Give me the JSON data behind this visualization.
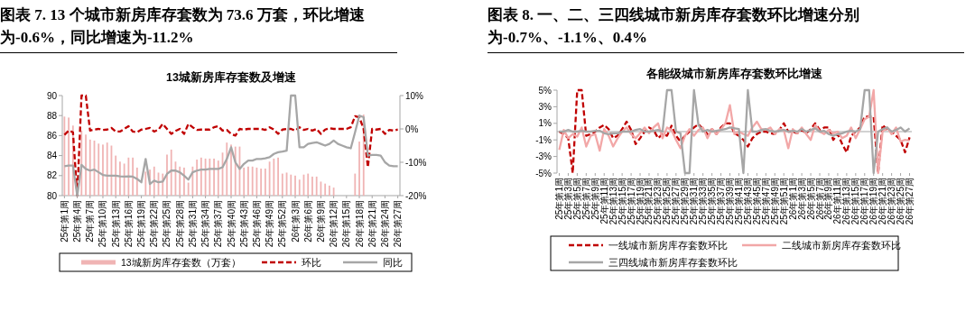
{
  "chart_data": [
    {
      "type": "bar",
      "title": "图表 7. 13 个城市新房库存套数为 73.6 万套，环比增速为-0.6%，同比增速为-11.2%",
      "subtitle": "13城新房库存套数及增速",
      "categories": [
        "25年第1周",
        null,
        null,
        "25年第4周",
        null,
        null,
        "25年第7周",
        null,
        null,
        "25年第10周",
        null,
        null,
        "25年第13周",
        null,
        null,
        "25年第16周",
        null,
        null,
        "25年第19周",
        null,
        null,
        "25年第22周",
        null,
        null,
        "25年第25周",
        null,
        null,
        "25年第28周",
        null,
        null,
        "25年第31周",
        null,
        null,
        "25年第34周",
        null,
        null,
        "25年第37周",
        null,
        null,
        "25年第40周",
        null,
        null,
        "25年第43周",
        null,
        null,
        "25年第46周",
        null,
        null,
        "25年第49周",
        null,
        null,
        "25年第52周",
        null,
        null,
        "26年第3周",
        null,
        null,
        "26年第6周",
        null,
        null,
        "26年第9周",
        null,
        null,
        "26年第12周",
        null,
        null,
        "26年第15周",
        null,
        null,
        "26年第18周",
        null,
        null,
        "26年第21周",
        null,
        null,
        "26年第24周",
        null,
        null,
        "26年第27周"
      ],
      "series": [
        {
          "name": "13城新房库存套数（万套）",
          "color": "#f0b4b4",
          "values": [
            87.9,
            87.8,
            87.0,
            null,
            86.5,
            86.1,
            85.6,
            85.5,
            85.2,
            85.1,
            85.3,
            85.0,
            84.0,
            83.4,
            83.2,
            83.8,
            83.8,
            82.8,
            null,
            82.4,
            82.6,
            82.9,
            82.3,
            82.2,
            84.1,
            84.6,
            83.4,
            82.9,
            82.8,
            81.3,
            82.9,
            83.6,
            83.8,
            83.7,
            83.7,
            83.7,
            83.5,
            84.3,
            85.3,
            85.1,
            84.9,
            84.9,
            82.8,
            82.9,
            82.9,
            82.8,
            82.7,
            82.7,
            83.4,
            83.7,
            83.8,
            82.2,
            82.3,
            82.1,
            82.0,
            81.6,
            82.1,
            82.2,
            81.9,
            81.9,
            81.4,
            81.2,
            81.0,
            80.8,
            null,
            null,
            null,
            null,
            82.2,
            85.4,
            88.1,
            null,
            null,
            null,
            null,
            null,
            null,
            null,
            null
          ]
        },
        {
          "name": "环比",
          "type": "line",
          "axis": "y2",
          "line_style": "dashed",
          "color": "#c00000",
          "values": [
            -1.8,
            -0.5,
            -1,
            -20,
            10,
            10,
            -0.5,
            -0.2,
            0,
            -0.3,
            -0.2,
            0.3,
            -0.8,
            -0.8,
            0,
            0.8,
            -0.8,
            -1,
            -0.2,
            0,
            0.3,
            -0.8,
            -0.2,
            1.5,
            0,
            -1.5,
            -0.6,
            0,
            -1.5,
            1.5,
            0.5,
            -0.3,
            -0.2,
            -0.2,
            -0.2,
            0.5,
            0.8,
            -0.5,
            -0.3,
            -1.5,
            -2,
            0,
            -0.2,
            0,
            0,
            0,
            0,
            -0.3,
            0.5,
            -0.2,
            -1.5,
            -0.2,
            0,
            0,
            -0.5,
            0.5,
            -0.3,
            0,
            -0.5,
            0,
            -1.5,
            -0.2,
            0.2,
            0,
            0,
            0,
            0,
            0.5,
            3.8,
            3.5,
            0,
            -11.5,
            0,
            -0.2,
            0,
            -1.5,
            -0.3,
            -0.5,
            -0.2
          ]
        },
        {
          "name": "同比",
          "type": "line",
          "axis": "y2",
          "line_style": "solid",
          "color": "#a6a6a6",
          "values": [
            -11.2,
            -11,
            -11,
            -20,
            -10.8,
            -12,
            -12.5,
            -12.2,
            -13,
            -13.8,
            -14,
            -14,
            -14,
            -14.2,
            -14.3,
            -14.2,
            -14.3,
            -15,
            -16,
            -9,
            -16.5,
            -15.5,
            -16,
            -15.8,
            -13.5,
            -12.5,
            -12.5,
            -13,
            -14,
            -15.2,
            -13,
            -12.5,
            -12.2,
            -12.2,
            -12,
            -12,
            -12,
            -11.5,
            -9,
            -5.5,
            -10,
            -12,
            -10.5,
            -9.5,
            -9.5,
            -9,
            -9,
            -8.8,
            -8.5,
            -7.5,
            -7,
            -6.8,
            -6.5,
            10,
            10,
            -5.5,
            -5.5,
            -4.5,
            -4.2,
            -4,
            -4.5,
            -5,
            -4.5,
            -3.5,
            -4.5,
            -5,
            -5.5,
            -5.8,
            -1,
            4,
            3.5,
            -8,
            -7.8,
            -7.8,
            -8,
            -10,
            -11,
            -11.2,
            -11.2
          ]
        }
      ],
      "ylim": [
        80,
        90
      ],
      "yticks": [
        80,
        82,
        84,
        86,
        88,
        90
      ],
      "y2lim": [
        -20,
        10
      ],
      "y2ticks": [
        {
          "value": -20,
          "label": "-20%"
        },
        {
          "value": -10,
          "label": "-10%"
        },
        {
          "value": 0,
          "label": "0%"
        },
        {
          "value": 10,
          "label": "10%"
        }
      ],
      "legend": "bottom"
    },
    {
      "type": "line",
      "title": "图表 8. 一、二、三四线城市新房库存套数环比增速分别为-0.7%、-1.1%、0.4%",
      "subtitle": "各能级城市新房库存套数环比增速",
      "categories": [
        "25年第1周",
        null,
        "25年第3周",
        null,
        "25年第5周",
        null,
        "25年第7周",
        null,
        "25年第9周",
        null,
        "25年第11周",
        null,
        "25年第13周",
        null,
        "25年第15周",
        null,
        "25年第17周",
        null,
        "25年第19周",
        null,
        "25年第21周",
        null,
        "25年第23周",
        null,
        "25年第25周",
        null,
        "25年第27周",
        null,
        "25年第29周",
        null,
        "25年第31周",
        null,
        "25年第33周",
        null,
        "25年第35周",
        null,
        "25年第37周",
        null,
        "25年第39周",
        null,
        "25年第41周",
        null,
        "25年第43周",
        null,
        "25年第45周",
        null,
        "25年第47周",
        null,
        "25年第49周",
        null,
        "25年第51周",
        null,
        "26年第1周",
        null,
        "26年第3周",
        null,
        "26年第5周",
        null,
        "26年第7周",
        null,
        "26年第9周",
        null,
        "26年第11周",
        null,
        "26年第13周",
        null,
        "26年第15周",
        null,
        "26年第17周",
        null,
        "26年第19周",
        null,
        "26年第21周",
        null,
        "26年第23周",
        null,
        "26年第25周",
        null,
        "26年第27周"
      ],
      "series": [
        {
          "name": "一线城市新房库存套数环比",
          "line_style": "dashed",
          "color": "#c00000",
          "values": [
            0,
            -0.3,
            -0.8,
            -5,
            5,
            5,
            -0.5,
            -0.3,
            0,
            0.5,
            0.8,
            0.3,
            -0.8,
            -0.5,
            0.3,
            1.2,
            0.2,
            -1.5,
            -0.8,
            0,
            0.5,
            0.2,
            -0.8,
            -0.3,
            -0.5,
            0.7,
            -0.5,
            -1.2,
            -0.5,
            0,
            0.5,
            0.9,
            0.3,
            -0.3,
            0.3,
            -0.3,
            0.5,
            1.0,
            1.0,
            -0.2,
            -0.5,
            -1.0,
            -1.8,
            -0.8,
            -0.3,
            0,
            0,
            -0.2,
            -0.3,
            0.2,
            1.0,
            0,
            0,
            -0.2,
            0.2,
            -0.2,
            0.3,
            1.0,
            0.2,
            0.5,
            0.5,
            -1.0,
            -0.3,
            -1.5,
            -2.5,
            -0.5,
            0,
            0.5,
            1.8,
            1.8,
            1.8,
            -5,
            0.8,
            0.2,
            0,
            -0.5,
            -1,
            -2.5,
            -0.7
          ]
        },
        {
          "name": "二线城市新房库存套数环比",
          "line_style": "solid",
          "color": "#f2a7a7",
          "values": [
            -2.2,
            0.2,
            -0.8,
            -0.3,
            -0.6,
            0.5,
            -1.8,
            -0.5,
            -0.3,
            -2.3,
            0.3,
            -0.5,
            -1.8,
            -0.8,
            0,
            0.5,
            -0.3,
            -0.8,
            -0.2,
            0.5,
            -0.2,
            0.5,
            1.0,
            -0.8,
            0.5,
            0.2,
            -1.0,
            -2.0,
            -0.5,
            0.3,
            -0.5,
            0.2,
            0.5,
            -0.8,
            0.3,
            -0.3,
            0.3,
            1.0,
            3.2,
            -0.3,
            0,
            -0.3,
            -0.5,
            0.5,
            1.2,
            0.3,
            0.2,
            0.5,
            -0.3,
            0.3,
            0.2,
            -2.0,
            0.3,
            -0.2,
            0.5,
            -0.3,
            -1.0,
            0.8,
            0,
            -0.3,
            0.2,
            -0.2,
            0,
            -0.8,
            -0.5,
            0.5,
            -0.8,
            0.3,
            1.5,
            1.8,
            5,
            -5,
            0,
            0.5,
            -0.3,
            0.5,
            -1.2,
            -1.0,
            -1.1
          ]
        },
        {
          "name": "三四线城市新房库存套数环比",
          "line_style": "solid",
          "color": "#a6a6a6",
          "values": [
            0,
            0,
            0.2,
            0,
            0,
            0.1,
            0,
            0,
            0.1,
            0.1,
            -0.2,
            -0.3,
            -0.2,
            -0.2,
            0,
            0,
            0,
            0.2,
            0.3,
            0,
            0,
            0.1,
            0.2,
            0,
            5,
            5,
            0,
            -0.2,
            -5,
            -5,
            5,
            0.8,
            0,
            0.2,
            0,
            0.1,
            0.2,
            0.3,
            0.5,
            0.4,
            0.3,
            -5,
            5,
            0,
            0,
            0.2,
            0.3,
            0.1,
            0,
            0.1,
            0.2,
            0,
            0.1,
            0,
            0.3,
            0,
            0.2,
            0.4,
            0,
            0.1,
            -0.3,
            -0.5,
            -0.3,
            -0.2,
            0,
            0.1,
            0,
            0.3,
            5,
            5,
            -5,
            0,
            0.3,
            0.5,
            0,
            0.2,
            0.5,
            0,
            0.4
          ]
        }
      ],
      "ylim": [
        -5,
        5
      ],
      "yticks": [
        {
          "value": -5,
          "label": "-5%"
        },
        {
          "value": -3,
          "label": "-3%"
        },
        {
          "value": -1,
          "label": "-1%"
        },
        {
          "value": 1,
          "label": "1%"
        },
        {
          "value": 3,
          "label": "3%"
        },
        {
          "value": 5,
          "label": "5%"
        }
      ],
      "legend": "bottom"
    }
  ]
}
